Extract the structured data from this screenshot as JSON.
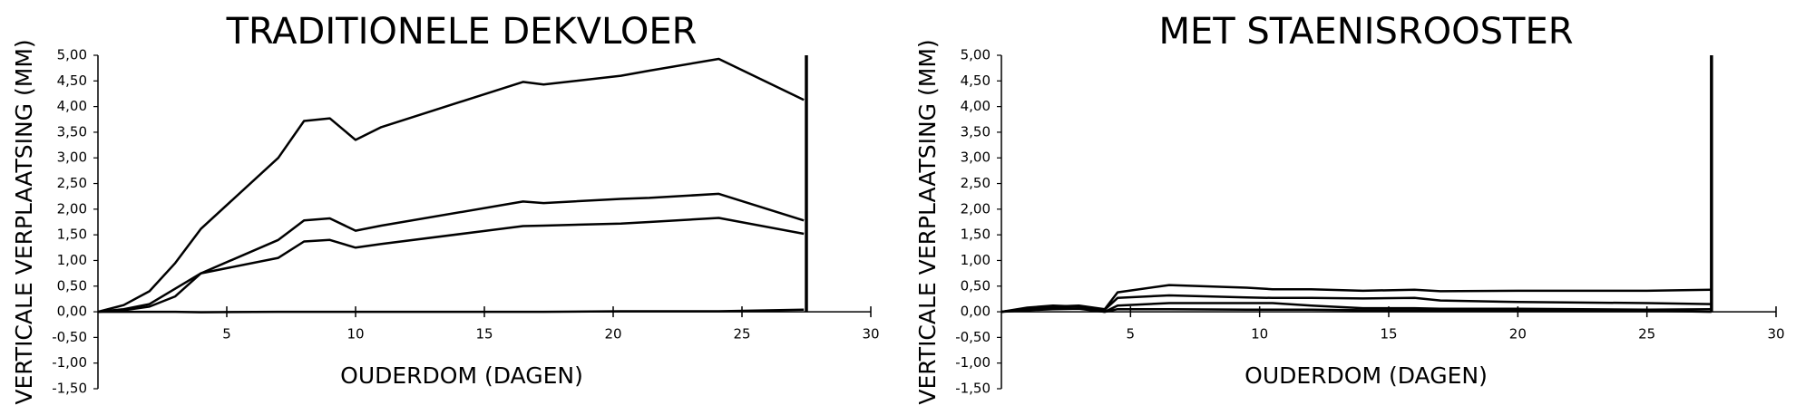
{
  "chart_data": [
    {
      "type": "line",
      "title": "TRADITIONELE DEKVLOER",
      "y_label": "VERTICALE VERPLAATSING (MM)",
      "x_label": "OUDERDOM (DAGEN)",
      "xlim": [
        0,
        30
      ],
      "ylim": [
        -1.5,
        5
      ],
      "xticks": [
        5,
        10,
        15,
        20,
        25,
        30
      ],
      "yticks": [
        {
          "value": 5,
          "label": "5,00"
        },
        {
          "value": 4.5,
          "label": "4,50"
        },
        {
          "value": 4,
          "label": "4,00"
        },
        {
          "value": 3.5,
          "label": "3,50"
        },
        {
          "value": 3,
          "label": "3,00"
        },
        {
          "value": 2.5,
          "label": "2,50"
        },
        {
          "value": 2,
          "label": "2,00"
        },
        {
          "value": 1.5,
          "label": "1,50"
        },
        {
          "value": 1,
          "label": "1,00"
        },
        {
          "value": 0.5,
          "label": "0,50"
        },
        {
          "value": 0,
          "label": "0,00"
        },
        {
          "value": -0.5,
          "label": "-0,50"
        },
        {
          "value": -1,
          "label": "-1,00"
        },
        {
          "value": -1.5,
          "label": "-1,50"
        }
      ],
      "reference_line_x": 27.5,
      "x": [
        0,
        1,
        2,
        3,
        4,
        7,
        8,
        9,
        10,
        11,
        16.5,
        17.3,
        20.3,
        21.4,
        24.1,
        27.4
      ],
      "series": [
        {
          "color": "#000000",
          "values": [
            0,
            0.13,
            0.4,
            0.95,
            1.62,
            3.0,
            3.72,
            3.77,
            3.35,
            3.6,
            4.48,
            4.43,
            4.6,
            4.7,
            4.93,
            4.13
          ]
        },
        {
          "color": "#000000",
          "values": [
            0,
            0.05,
            0.15,
            0.45,
            0.75,
            1.4,
            1.78,
            1.82,
            1.58,
            1.68,
            2.15,
            2.12,
            2.2,
            2.22,
            2.3,
            1.78
          ]
        },
        {
          "color": "#000000",
          "values": [
            0,
            0.03,
            0.1,
            0.3,
            0.75,
            1.05,
            1.37,
            1.4,
            1.25,
            1.32,
            1.67,
            1.68,
            1.72,
            1.75,
            1.83,
            1.52
          ]
        },
        {
          "color": "#000000",
          "values": [
            0,
            0,
            0,
            0,
            -0.01,
            0,
            0,
            0,
            0,
            0,
            0,
            0,
            0.01,
            0.01,
            0.01,
            0.04
          ]
        }
      ]
    },
    {
      "type": "line",
      "title": "MET STAENISROOSTER",
      "y_label": "VERTICALE VERPLAATSING (MM)",
      "x_label": "OUDERDOM (DAGEN)",
      "xlim": [
        0,
        30
      ],
      "ylim": [
        -1.5,
        5
      ],
      "xticks": [
        5,
        10,
        15,
        20,
        25,
        30
      ],
      "yticks": [
        {
          "value": 5,
          "label": "5,00"
        },
        {
          "value": 4.5,
          "label": "4,50"
        },
        {
          "value": 4,
          "label": "4,00"
        },
        {
          "value": 3.5,
          "label": "3,50"
        },
        {
          "value": 3,
          "label": "3,00"
        },
        {
          "value": 2.5,
          "label": "2,50"
        },
        {
          "value": 2,
          "label": "2,00"
        },
        {
          "value": 1.5,
          "label": "1,50"
        },
        {
          "value": 1,
          "label": "1,00"
        },
        {
          "value": 0.5,
          "label": "0,50"
        },
        {
          "value": 0,
          "label": "0,00"
        },
        {
          "value": -0.5,
          "label": "-0,50"
        },
        {
          "value": -1,
          "label": "-1,00"
        },
        {
          "value": -1.5,
          "label": "-1,50"
        }
      ],
      "reference_line_x": 27.5,
      "x": [
        0,
        1,
        2,
        3,
        4,
        4.5,
        6.5,
        9.5,
        10.5,
        12,
        14,
        16,
        17,
        20,
        25,
        27.5
      ],
      "series": [
        {
          "color": "#000000",
          "values": [
            0,
            0.06,
            0.1,
            0.12,
            0.05,
            0.38,
            0.52,
            0.47,
            0.44,
            0.44,
            0.41,
            0.43,
            0.4,
            0.41,
            0.41,
            0.43
          ]
        },
        {
          "color": "#000000",
          "values": [
            0,
            0.05,
            0.08,
            0.1,
            0.04,
            0.27,
            0.32,
            0.28,
            0.27,
            0.27,
            0.26,
            0.27,
            0.22,
            0.19,
            0.17,
            0.15
          ]
        },
        {
          "color": "#000000",
          "values": [
            0,
            0.08,
            0.12,
            0.1,
            0,
            0.12,
            0.17,
            0.17,
            0.17,
            0.12,
            0.07,
            0.07,
            0.06,
            0.06,
            0.04,
            0.05
          ]
        },
        {
          "color": "#000000",
          "values": [
            0,
            0.03,
            0.05,
            0.06,
            0,
            0.05,
            0.05,
            0.04,
            0.04,
            0.04,
            0.03,
            0.03,
            0.03,
            0.02,
            0.02,
            0
          ]
        }
      ]
    }
  ]
}
